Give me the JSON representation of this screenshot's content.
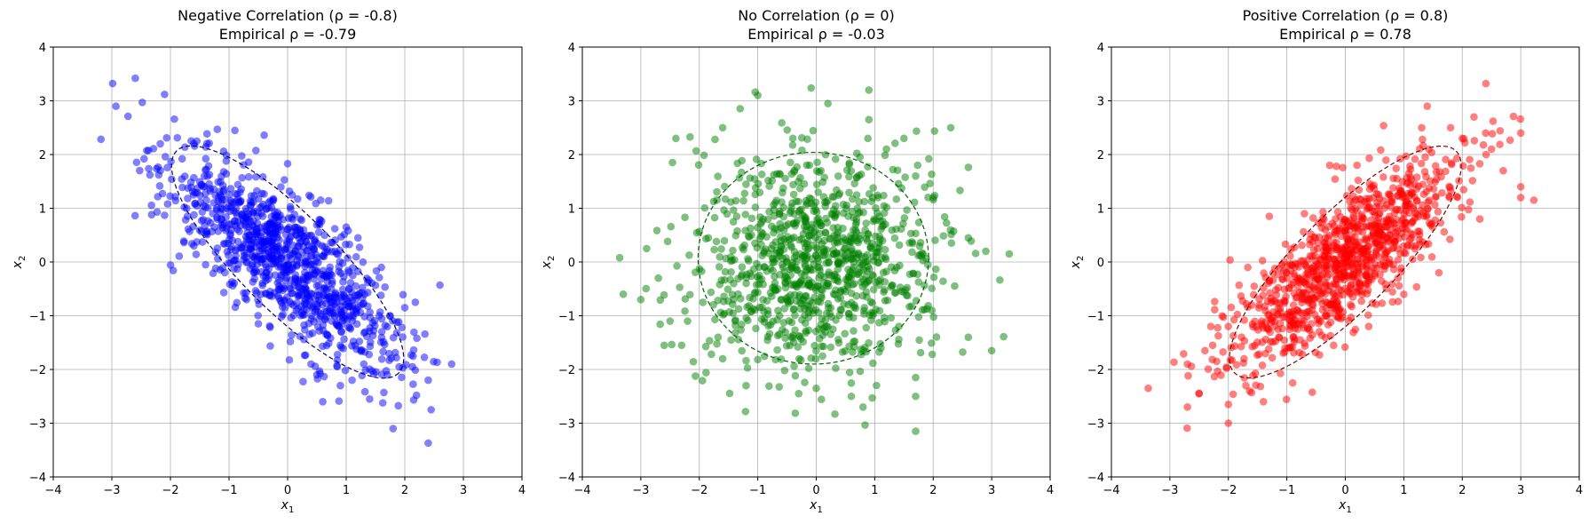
{
  "chart_data": [
    {
      "type": "scatter",
      "title": "Negative Correlation (ρ = -0.8)",
      "subtitle": "Empirical ρ = -0.79",
      "xlabel": "x1",
      "ylabel": "x2",
      "xlim": [
        -4,
        4
      ],
      "ylim": [
        -4,
        4
      ],
      "xticks": [
        -4,
        -3,
        -2,
        -1,
        0,
        1,
        2,
        3,
        4
      ],
      "yticks": [
        -4,
        -3,
        -2,
        -1,
        0,
        1,
        2,
        3,
        4
      ],
      "grid": true,
      "rho": -0.8,
      "n_points": 1000,
      "color": "#0000ff",
      "ellipse": {
        "center": [
          0,
          0
        ],
        "angle_deg": -45,
        "semi_major": 2.68,
        "semi_minor": 0.89,
        "color": "#000080",
        "style": "dashed"
      },
      "points": [
        [
          -2.6,
          3.42
        ],
        [
          -2.1,
          3.12
        ],
        [
          -2.2,
          1.62
        ],
        [
          -2.1,
          0.87
        ],
        [
          -1.2,
          2.47
        ],
        [
          -0.9,
          2.45
        ],
        [
          -0.4,
          2.36
        ],
        [
          0.0,
          1.83
        ],
        [
          0.7,
          1.14
        ],
        [
          1.0,
          0.65
        ],
        [
          1.2,
          0.45
        ],
        [
          1.6,
          -0.1
        ],
        [
          2.6,
          -0.43
        ],
        [
          2.8,
          -1.9
        ],
        [
          2.4,
          -2.2
        ],
        [
          2.45,
          -2.75
        ],
        [
          2.4,
          -3.37
        ],
        [
          1.8,
          -3.1
        ],
        [
          1.4,
          -2.55
        ],
        [
          0.9,
          -2.3
        ],
        [
          0.4,
          -1.9
        ],
        [
          0.5,
          -2.1
        ],
        [
          -0.5,
          -1.15
        ],
        [
          -1.4,
          -0.05
        ],
        [
          -1.6,
          0.3
        ],
        [
          -1.8,
          1.92
        ],
        [
          -2.45,
          1.92
        ],
        [
          -2.35,
          1.62
        ],
        [
          -1.55,
          2.25
        ],
        [
          2.2,
          -2.48
        ],
        [
          1.7,
          -2.1
        ],
        [
          2.0,
          -0.85
        ],
        [
          0.9,
          -1.55
        ],
        [
          1.1,
          -2.2
        ],
        [
          -0.7,
          -0.7
        ],
        [
          1.3,
          -1.9
        ],
        [
          0.6,
          -2.6
        ]
      ]
    },
    {
      "type": "scatter",
      "title": "No Correlation (ρ = 0)",
      "subtitle": "Empirical ρ = -0.03",
      "xlabel": "x1",
      "ylabel": "x2",
      "xlim": [
        -4,
        4
      ],
      "ylim": [
        -4,
        4
      ],
      "xticks": [
        -4,
        -3,
        -2,
        -1,
        0,
        1,
        2,
        3,
        4
      ],
      "yticks": [
        -4,
        -3,
        -2,
        -1,
        0,
        1,
        2,
        3,
        4
      ],
      "grid": true,
      "rho": 0,
      "n_points": 1000,
      "color": "#008000",
      "ellipse": {
        "center": [
          -0.05,
          0.07
        ],
        "angle_deg": 0,
        "semi_major": 1.97,
        "semi_minor": 1.97,
        "color": "#006400",
        "style": "dashed"
      },
      "points": [
        [
          -3.3,
          -0.6
        ],
        [
          -3.0,
          -0.7
        ],
        [
          -2.9,
          0.25
        ],
        [
          -2.7,
          -0.3
        ],
        [
          -2.4,
          2.3
        ],
        [
          -2.5,
          -1.1
        ],
        [
          -1.0,
          3.1
        ],
        [
          0.2,
          2.95
        ],
        [
          0.9,
          3.2
        ],
        [
          0.9,
          2.65
        ],
        [
          2.3,
          2.5
        ],
        [
          2.6,
          0.45
        ],
        [
          2.9,
          0.2
        ],
        [
          3.3,
          0.15
        ],
        [
          3.0,
          -1.65
        ],
        [
          2.6,
          -1.4
        ],
        [
          1.7,
          -2.15
        ],
        [
          1.7,
          -2.5
        ],
        [
          1.7,
          -3.15
        ],
        [
          0.8,
          -2.7
        ],
        [
          0.6,
          -2.5
        ],
        [
          0.0,
          -2.35
        ],
        [
          -0.3,
          -2.45
        ],
        [
          -1.2,
          -2.3
        ],
        [
          -1.6,
          -1.8
        ],
        [
          -2.2,
          -1.1
        ],
        [
          -2.6,
          -1.55
        ],
        [
          1.7,
          1.6
        ],
        [
          -1.6,
          2.5
        ],
        [
          1.2,
          2.1
        ],
        [
          2.0,
          1.2
        ],
        [
          -0.4,
          2.3
        ],
        [
          1.5,
          2.3
        ]
      ]
    },
    {
      "type": "scatter",
      "title": "Positive Correlation (ρ = 0.8)",
      "subtitle": "Empirical ρ = 0.78",
      "xlabel": "x1",
      "ylabel": "x2",
      "xlim": [
        -4,
        4
      ],
      "ylim": [
        -4,
        4
      ],
      "xticks": [
        -4,
        -3,
        -2,
        -1,
        0,
        1,
        2,
        3,
        4
      ],
      "yticks": [
        -4,
        -3,
        -2,
        -1,
        0,
        1,
        2,
        3,
        4
      ],
      "grid": true,
      "rho": 0.8,
      "n_points": 1000,
      "color": "#ff0000",
      "ellipse": {
        "center": [
          0,
          0
        ],
        "angle_deg": 45,
        "semi_major": 2.68,
        "semi_minor": 0.89,
        "color": "#800000",
        "style": "dashed"
      },
      "points": [
        [
          -2.7,
          -2.7
        ],
        [
          -2.7,
          -1.9
        ],
        [
          -2.5,
          -2.45
        ],
        [
          -2.4,
          -1.65
        ],
        [
          -2.0,
          -3.0
        ],
        [
          -2.0,
          -2.65
        ],
        [
          -1.4,
          -2.6
        ],
        [
          -1.3,
          0.85
        ],
        [
          -2.3,
          -1.2
        ],
        [
          -0.7,
          0.9
        ],
        [
          0.2,
          1.8
        ],
        [
          1.4,
          2.9
        ],
        [
          2.2,
          2.7
        ],
        [
          2.4,
          2.4
        ],
        [
          2.7,
          1.7
        ],
        [
          3.0,
          2.4
        ],
        [
          3.0,
          1.4
        ],
        [
          3.0,
          1.2
        ],
        [
          2.3,
          0.8
        ],
        [
          1.6,
          -0.2
        ],
        [
          1.0,
          -0.6
        ],
        [
          0.4,
          -1.2
        ],
        [
          -0.2,
          -1.55
        ],
        [
          -0.9,
          -2.25
        ],
        [
          -1.7,
          -2.3
        ],
        [
          -2.2,
          -1.85
        ],
        [
          1.8,
          2.5
        ],
        [
          2.5,
          2.1
        ],
        [
          -1.6,
          -0.8
        ],
        [
          0.9,
          -0.3
        ],
        [
          2.0,
          2.3
        ],
        [
          -1.0,
          -0.2
        ],
        [
          1.2,
          0.3
        ]
      ]
    }
  ]
}
